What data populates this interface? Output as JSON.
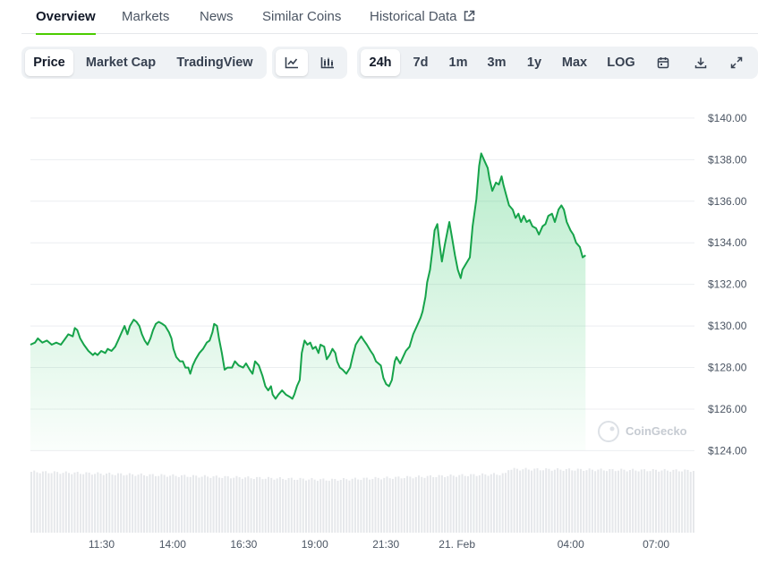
{
  "tabs": [
    {
      "label": "Overview",
      "active": true
    },
    {
      "label": "Markets"
    },
    {
      "label": "News"
    },
    {
      "label": "Similar Coins"
    },
    {
      "label": "Historical Data",
      "external": true
    }
  ],
  "chart_toggle": [
    {
      "label": "Price",
      "active": true
    },
    {
      "label": "Market Cap"
    },
    {
      "label": "TradingView"
    }
  ],
  "chart_type_icons": [
    "line-chart-icon",
    "candlestick-chart-icon"
  ],
  "ranges": [
    {
      "label": "24h",
      "active": true
    },
    {
      "label": "7d"
    },
    {
      "label": "1m"
    },
    {
      "label": "3m"
    },
    {
      "label": "1y"
    },
    {
      "label": "Max"
    },
    {
      "label": "LOG"
    }
  ],
  "tool_icons": [
    "calendar-icon",
    "download-icon",
    "fullscreen-icon"
  ],
  "watermark": "CoinGecko",
  "colors": {
    "accent": "#4bcc00",
    "line": "#16a34a",
    "area": "#22c55e",
    "volume": "#e6e8eb"
  },
  "chart_data": {
    "type": "area",
    "x_unit": "hours since 09:00 (20 Feb)",
    "y_unit": "USD",
    "ylim": [
      123.2,
      140.6
    ],
    "yticks": [
      124,
      126,
      128,
      130,
      132,
      134,
      136,
      138,
      140
    ],
    "ytick_labels": [
      "$124.00",
      "$126.00",
      "$128.00",
      "$130.00",
      "$132.00",
      "$134.00",
      "$136.00",
      "$138.00",
      "$140.00"
    ],
    "xticks": [
      {
        "label": "11:30",
        "t": 2.5
      },
      {
        "label": "14:00",
        "t": 5.0
      },
      {
        "label": "16:30",
        "t": 7.5
      },
      {
        "label": "19:00",
        "t": 10.0
      },
      {
        "label": "21:30",
        "t": 12.5
      },
      {
        "label": "21. Feb",
        "t": 15.0
      },
      {
        "label": "04:00",
        "t": 19.0
      },
      {
        "label": "07:00",
        "t": 22.0
      }
    ],
    "xlim": [
      0,
      23.35
    ],
    "grid": true,
    "prices": [
      [
        0.0,
        129.1
      ],
      [
        0.16,
        129.2
      ],
      [
        0.26,
        129.4
      ],
      [
        0.42,
        129.2
      ],
      [
        0.58,
        129.3
      ],
      [
        0.75,
        129.1
      ],
      [
        0.91,
        129.2
      ],
      [
        1.07,
        129.1
      ],
      [
        1.23,
        129.4
      ],
      [
        1.33,
        129.6
      ],
      [
        1.49,
        129.5
      ],
      [
        1.56,
        129.9
      ],
      [
        1.65,
        129.8
      ],
      [
        1.75,
        129.4
      ],
      [
        1.88,
        129.1
      ],
      [
        2.04,
        128.8
      ],
      [
        2.2,
        128.6
      ],
      [
        2.27,
        128.7
      ],
      [
        2.36,
        128.6
      ],
      [
        2.49,
        128.8
      ],
      [
        2.63,
        128.7
      ],
      [
        2.72,
        128.9
      ],
      [
        2.85,
        128.8
      ],
      [
        2.98,
        129.0
      ],
      [
        3.08,
        129.3
      ],
      [
        3.21,
        129.7
      ],
      [
        3.31,
        130.0
      ],
      [
        3.41,
        129.6
      ],
      [
        3.5,
        130.0
      ],
      [
        3.63,
        130.3
      ],
      [
        3.73,
        130.2
      ],
      [
        3.83,
        130.0
      ],
      [
        3.92,
        129.6
      ],
      [
        4.02,
        129.3
      ],
      [
        4.12,
        129.1
      ],
      [
        4.22,
        129.4
      ],
      [
        4.31,
        129.8
      ],
      [
        4.41,
        130.1
      ],
      [
        4.51,
        130.2
      ],
      [
        4.64,
        130.1
      ],
      [
        4.74,
        130.0
      ],
      [
        4.87,
        129.7
      ],
      [
        4.96,
        129.4
      ],
      [
        5.03,
        128.9
      ],
      [
        5.13,
        128.5
      ],
      [
        5.26,
        128.3
      ],
      [
        5.36,
        128.3
      ],
      [
        5.45,
        128.0
      ],
      [
        5.55,
        128.0
      ],
      [
        5.62,
        127.7
      ],
      [
        5.71,
        128.1
      ],
      [
        5.81,
        128.4
      ],
      [
        5.94,
        128.7
      ],
      [
        6.07,
        128.9
      ],
      [
        6.2,
        129.2
      ],
      [
        6.3,
        129.3
      ],
      [
        6.4,
        129.7
      ],
      [
        6.46,
        130.1
      ],
      [
        6.56,
        130.0
      ],
      [
        6.63,
        129.4
      ],
      [
        6.73,
        128.7
      ],
      [
        6.83,
        127.9
      ],
      [
        6.93,
        128.0
      ],
      [
        7.09,
        128.0
      ],
      [
        7.19,
        128.3
      ],
      [
        7.32,
        128.1
      ],
      [
        7.48,
        128.0
      ],
      [
        7.58,
        128.2
      ],
      [
        7.71,
        127.9
      ],
      [
        7.81,
        127.7
      ],
      [
        7.9,
        128.3
      ],
      [
        8.03,
        128.1
      ],
      [
        8.16,
        127.6
      ],
      [
        8.26,
        127.1
      ],
      [
        8.36,
        126.9
      ],
      [
        8.46,
        127.1
      ],
      [
        8.52,
        126.7
      ],
      [
        8.62,
        126.5
      ],
      [
        8.72,
        126.7
      ],
      [
        8.85,
        126.9
      ],
      [
        8.98,
        126.7
      ],
      [
        9.11,
        126.6
      ],
      [
        9.21,
        126.5
      ],
      [
        9.28,
        126.7
      ],
      [
        9.37,
        127.1
      ],
      [
        9.47,
        127.4
      ],
      [
        9.54,
        128.7
      ],
      [
        9.64,
        129.3
      ],
      [
        9.74,
        129.1
      ],
      [
        9.84,
        129.2
      ],
      [
        9.93,
        128.9
      ],
      [
        10.03,
        129.0
      ],
      [
        10.13,
        128.7
      ],
      [
        10.2,
        129.1
      ],
      [
        10.33,
        129.0
      ],
      [
        10.42,
        128.4
      ],
      [
        10.52,
        128.6
      ],
      [
        10.62,
        128.9
      ],
      [
        10.72,
        128.7
      ],
      [
        10.78,
        128.3
      ],
      [
        10.88,
        128.0
      ],
      [
        10.98,
        127.9
      ],
      [
        11.11,
        127.7
      ],
      [
        11.24,
        128.0
      ],
      [
        11.34,
        128.6
      ],
      [
        11.44,
        129.1
      ],
      [
        11.53,
        129.3
      ],
      [
        11.63,
        129.5
      ],
      [
        11.73,
        129.3
      ],
      [
        11.83,
        129.1
      ],
      [
        11.96,
        128.8
      ],
      [
        12.06,
        128.6
      ],
      [
        12.15,
        128.3
      ],
      [
        12.32,
        128.1
      ],
      [
        12.41,
        127.5
      ],
      [
        12.51,
        127.2
      ],
      [
        12.61,
        127.1
      ],
      [
        12.71,
        127.4
      ],
      [
        12.81,
        128.3
      ],
      [
        12.87,
        128.5
      ],
      [
        13.0,
        128.2
      ],
      [
        13.1,
        128.5
      ],
      [
        13.2,
        128.8
      ],
      [
        13.33,
        129.0
      ],
      [
        13.46,
        129.6
      ],
      [
        13.59,
        130.0
      ],
      [
        13.72,
        130.4
      ],
      [
        13.79,
        130.7
      ],
      [
        13.89,
        131.4
      ],
      [
        13.95,
        132.1
      ],
      [
        14.05,
        132.7
      ],
      [
        14.15,
        133.8
      ],
      [
        14.21,
        134.6
      ],
      [
        14.31,
        134.9
      ],
      [
        14.38,
        134.0
      ],
      [
        14.47,
        133.1
      ],
      [
        14.57,
        133.9
      ],
      [
        14.67,
        134.6
      ],
      [
        14.73,
        135.0
      ],
      [
        14.83,
        134.2
      ],
      [
        14.93,
        133.4
      ],
      [
        15.03,
        132.7
      ],
      [
        15.13,
        132.3
      ],
      [
        15.19,
        132.7
      ],
      [
        15.32,
        133.0
      ],
      [
        15.45,
        133.3
      ],
      [
        15.55,
        134.8
      ],
      [
        15.68,
        136.1
      ],
      [
        15.78,
        137.7
      ],
      [
        15.85,
        138.3
      ],
      [
        15.98,
        137.9
      ],
      [
        16.08,
        137.6
      ],
      [
        16.14,
        137.1
      ],
      [
        16.24,
        136.5
      ],
      [
        16.37,
        136.9
      ],
      [
        16.47,
        136.8
      ],
      [
        16.57,
        137.2
      ],
      [
        16.63,
        136.8
      ],
      [
        16.73,
        136.3
      ],
      [
        16.83,
        135.8
      ],
      [
        16.96,
        135.6
      ],
      [
        17.06,
        135.2
      ],
      [
        17.16,
        135.4
      ],
      [
        17.25,
        135.0
      ],
      [
        17.35,
        135.3
      ],
      [
        17.45,
        135.0
      ],
      [
        17.55,
        135.1
      ],
      [
        17.65,
        134.8
      ],
      [
        17.78,
        134.7
      ],
      [
        17.88,
        134.4
      ],
      [
        18.01,
        134.8
      ],
      [
        18.11,
        134.9
      ],
      [
        18.21,
        135.3
      ],
      [
        18.34,
        135.4
      ],
      [
        18.44,
        135.0
      ],
      [
        18.57,
        135.6
      ],
      [
        18.67,
        135.8
      ],
      [
        18.76,
        135.6
      ],
      [
        18.86,
        135.0
      ],
      [
        18.99,
        134.6
      ],
      [
        19.09,
        134.4
      ],
      [
        19.19,
        134.0
      ],
      [
        19.32,
        133.8
      ],
      [
        19.42,
        133.3
      ],
      [
        19.52,
        133.4
      ]
    ],
    "volume_note": "volume bars rendered as light gray columns"
  }
}
